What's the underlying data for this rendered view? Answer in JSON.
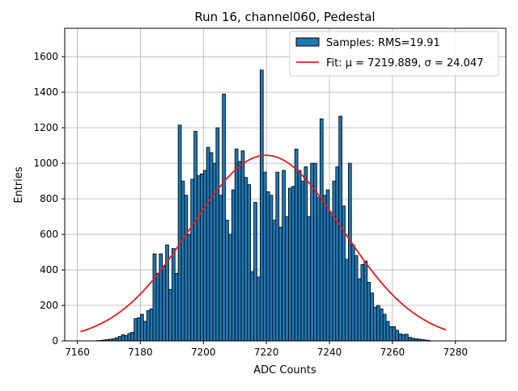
{
  "chart_data": {
    "type": "bar",
    "title": "Run 16, channel060, Pedestal",
    "xlabel": "ADC Counts",
    "ylabel": "Entries",
    "xlim": [
      7156,
      7296
    ],
    "ylim": [
      0,
      1760
    ],
    "xticks": [
      7160,
      7180,
      7200,
      7220,
      7240,
      7260,
      7280
    ],
    "yticks": [
      0,
      200,
      400,
      600,
      800,
      1000,
      1200,
      1400,
      1600
    ],
    "grid": true,
    "legend_position": "top-right",
    "bar_color": "#1f77b4",
    "bar_edge_color": "#000000",
    "fit_color": "#e41a1c",
    "bin_width": 1,
    "histogram": {
      "name": "Samples: RMS=19.91",
      "bin_start": 7166,
      "counts": [
        2,
        3,
        5,
        8,
        10,
        12,
        18,
        25,
        35,
        30,
        42,
        48,
        125,
        130,
        150,
        110,
        170,
        180,
        490,
        380,
        490,
        420,
        540,
        290,
        520,
        380,
        1215,
        900,
        820,
        600,
        910,
        1180,
        930,
        940,
        960,
        1090,
        1060,
        1000,
        1200,
        820,
        1390,
        680,
        600,
        850,
        1080,
        1010,
        1070,
        920,
        880,
        390,
        780,
        360,
        1525,
        950,
        840,
        820,
        680,
        950,
        640,
        960,
        700,
        860,
        870,
        1080,
        960,
        900,
        980,
        700,
        1000,
        1000,
        810,
        1250,
        820,
        850,
        720,
        900,
        980,
        1265,
        760,
        460,
        1000,
        540,
        480,
        350,
        430,
        450,
        330,
        270,
        190,
        200,
        180,
        150,
        110,
        80,
        80,
        60,
        40,
        35,
        38,
        20,
        15,
        12,
        10,
        8,
        5,
        3
      ]
    },
    "fit": {
      "name": "Fit: μ = 7219.889, σ = 24.047",
      "mu": 7219.889,
      "sigma": 24.047,
      "amplitude": 1045,
      "x_range": [
        7161,
        7277
      ]
    }
  }
}
